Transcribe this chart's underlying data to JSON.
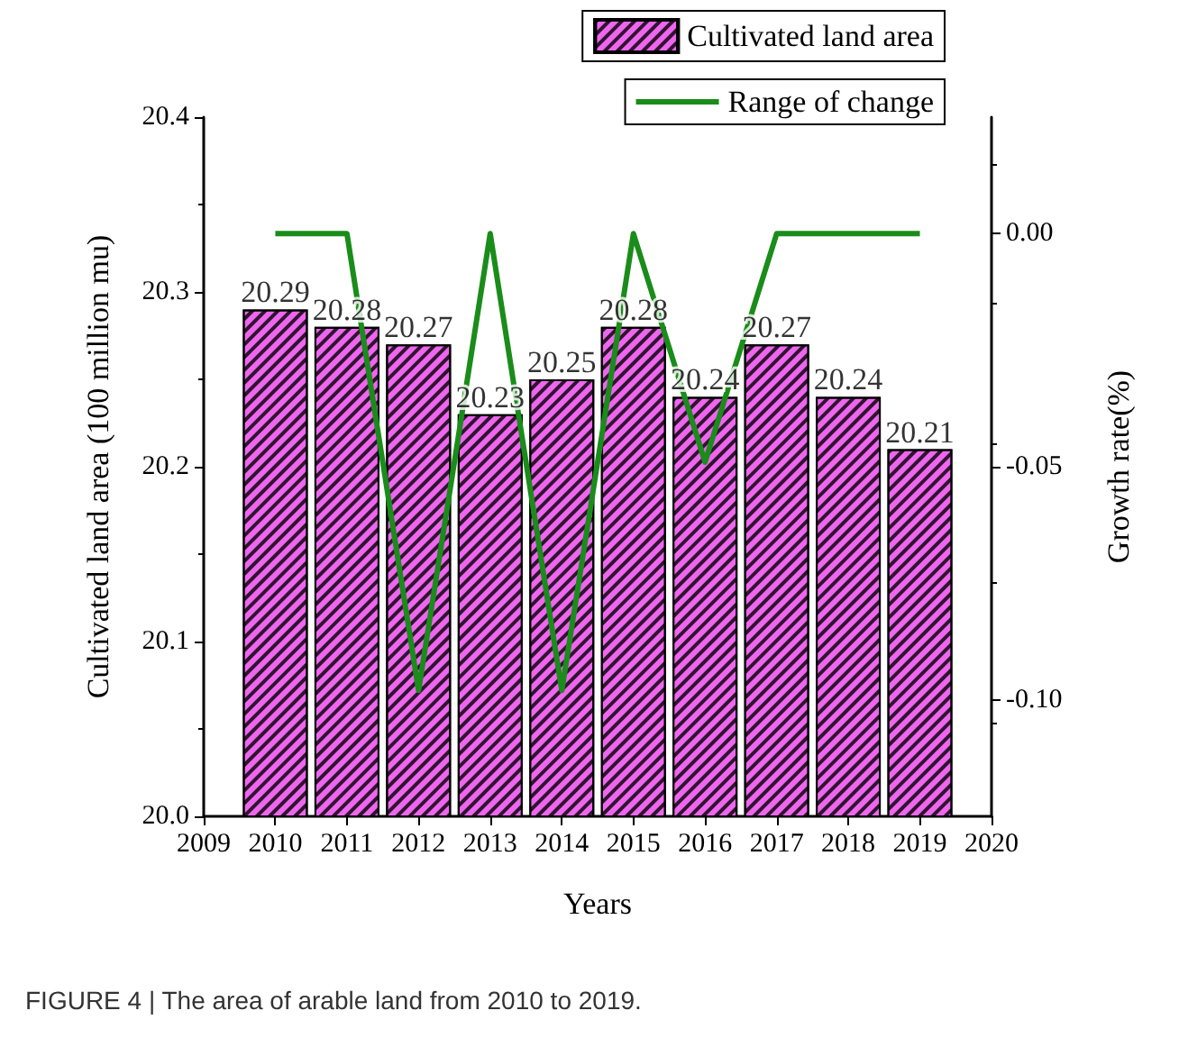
{
  "chart_data": {
    "type": "bar",
    "xlabel": "Years",
    "ylabel": "Cultivated land area (100 million mu)",
    "y2label": "Growth rate(%)",
    "x": [
      2010,
      2011,
      2012,
      2013,
      2014,
      2015,
      2016,
      2017,
      2018,
      2019
    ],
    "series": [
      {
        "name": "Cultivated land area",
        "color": "#ee66ee",
        "values": [
          20.29,
          20.28,
          20.27,
          20.23,
          20.25,
          20.28,
          20.24,
          20.27,
          20.24,
          20.21
        ],
        "value_labels": [
          "20.29",
          "20.28",
          "20.27",
          "20.23",
          "20.25",
          "20.28",
          "20.24",
          "20.27",
          "20.24",
          "20.21"
        ]
      },
      {
        "name": "Range of change",
        "type": "line",
        "axis": "y2",
        "color": "#1a8c1a",
        "values": [
          0,
          0,
          -0.098,
          0,
          -0.098,
          0,
          -0.049,
          0,
          0,
          0
        ]
      }
    ],
    "xlim": [
      2009,
      2020
    ],
    "xticks": [
      2009,
      2010,
      2011,
      2012,
      2013,
      2014,
      2015,
      2016,
      2017,
      2018,
      2019,
      2020
    ],
    "ylim": [
      20.0,
      20.4
    ],
    "yticks": [
      {
        "value": 20.0,
        "label": "20.0"
      },
      20.1,
      20.2,
      20.3,
      20.4
    ],
    "y2lim": [
      -0.125,
      0.025
    ],
    "y2ticks": [
      {
        "value": -0.1,
        "label": "-0.10"
      },
      {
        "value": -0.05,
        "label": "-0.05"
      },
      {
        "value": 0,
        "label": "0.00"
      }
    ],
    "legend": "top right",
    "grid": false,
    "marker": "none",
    "line_style": "solid",
    "annotations": [
      "FIGURE 4 | The area of arable land from 2010 to 2019."
    ]
  }
}
